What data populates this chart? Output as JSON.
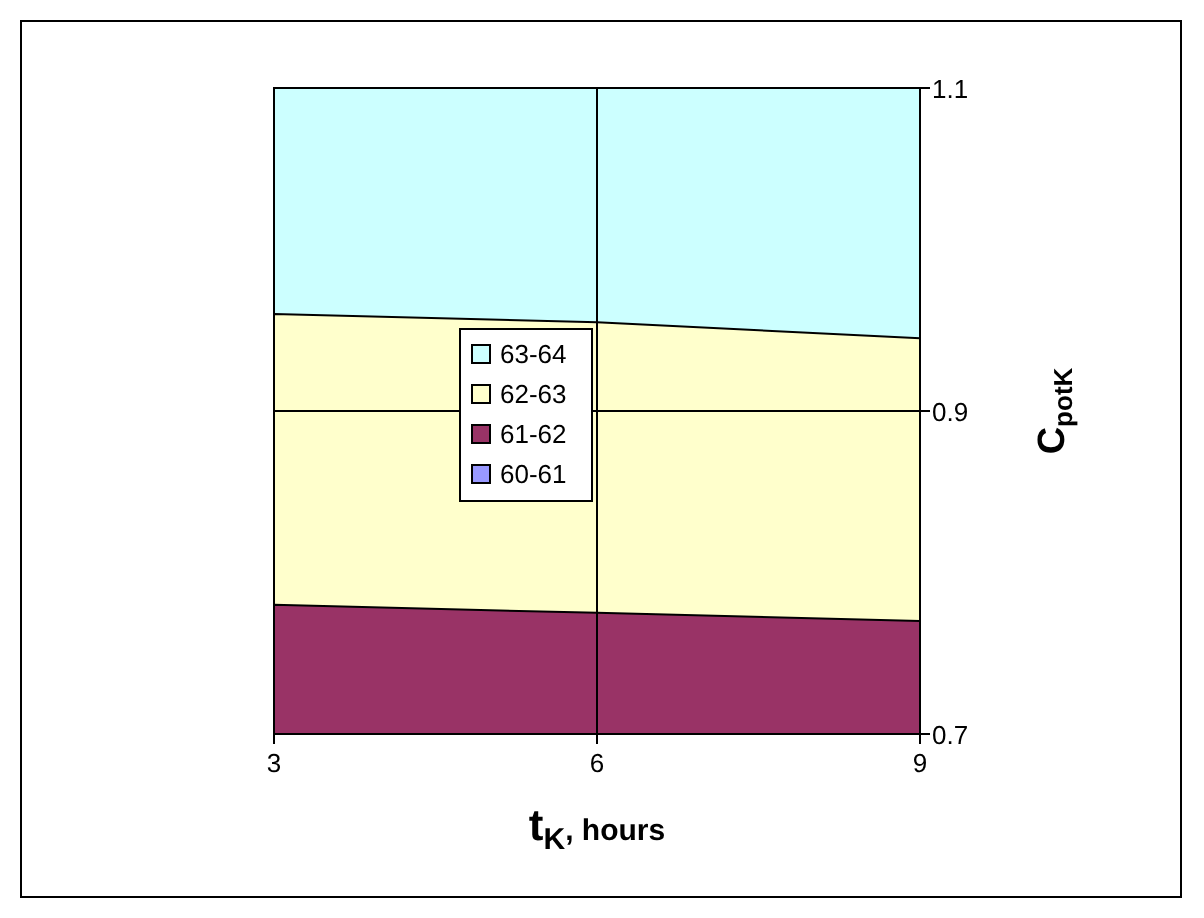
{
  "chart_data": {
    "type": "area",
    "x": [
      3,
      6,
      9
    ],
    "series": [
      {
        "name": "60-61",
        "color": "#9999ff",
        "values": [
          null,
          null,
          null
        ]
      },
      {
        "name": "61-62",
        "color": "#993366",
        "values": [
          0.78,
          0.775,
          0.77
        ]
      },
      {
        "name": "62-63",
        "color": "#ffffcc",
        "values": [
          0.96,
          0.955,
          0.945
        ]
      },
      {
        "name": "63-64",
        "color": "#ccffff",
        "values": [
          1.1,
          1.1,
          1.1
        ]
      }
    ],
    "xlim": [
      3,
      9
    ],
    "xticks": [
      3,
      6,
      9
    ],
    "ylim": [
      0.7,
      1.1
    ],
    "yticks": [
      0.7,
      0.9,
      1.1
    ],
    "xlabel": "t$_{K}$, hours",
    "ylabel": "C$_{potK}$",
    "grid": true,
    "legend": "center left"
  }
}
